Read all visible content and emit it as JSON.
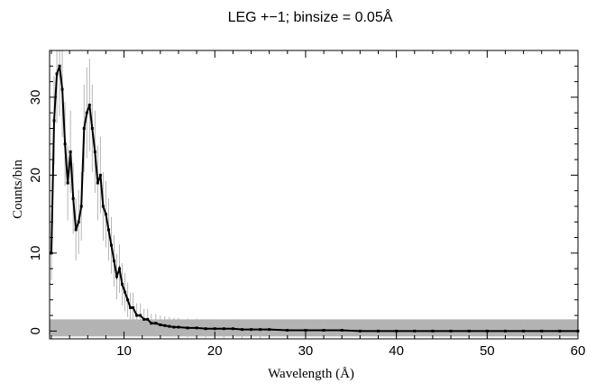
{
  "chart_data": {
    "type": "line",
    "title": "LEG +−1; binsize = 0.05Å",
    "xlabel": "Wavelength (Å)",
    "ylabel": "Counts/bin",
    "xlim": [
      1.8,
      60
    ],
    "ylim": [
      -1,
      36
    ],
    "grid": false,
    "x_ticks": [
      10,
      20,
      30,
      40,
      50,
      60
    ],
    "y_ticks": [
      0,
      10,
      20,
      30
    ],
    "x_tick_labels": [
      "10",
      "20",
      "30",
      "40",
      "50",
      "60"
    ],
    "y_tick_labels": [
      "0",
      "10",
      "20",
      "30"
    ],
    "background_band": [
      0,
      1.5
    ],
    "series": [
      {
        "x": [
          2.0,
          2.3,
          2.6,
          2.9,
          3.2,
          3.5,
          3.8,
          4.1,
          4.4,
          4.7,
          5.0,
          5.3,
          5.6,
          5.9,
          6.2,
          6.5,
          6.8,
          7.1,
          7.4,
          7.7,
          8.0,
          8.3,
          8.6,
          8.9,
          9.2,
          9.5,
          9.8,
          10.1,
          10.4,
          10.7,
          11.0,
          11.4,
          11.8,
          12.2,
          12.6,
          13.0,
          13.5,
          14.0,
          14.5,
          15.0,
          15.5,
          16.0,
          17.0,
          18.0,
          19.0,
          20.0,
          21.0,
          22.0,
          23.0,
          24.0,
          25.0,
          26.0,
          28.0,
          30.0,
          32.0,
          34.0,
          36.0,
          38.0,
          40.0,
          42.0,
          44.0,
          46.0,
          48.0,
          50.0,
          52.0,
          54.0,
          56.0,
          58.0,
          60.0
        ],
        "y": [
          10,
          27,
          33,
          34,
          31,
          24,
          19,
          23,
          17,
          13,
          14,
          16,
          26,
          28,
          29,
          26,
          23,
          19,
          20,
          16,
          15,
          13,
          11,
          9,
          7,
          8,
          6,
          5,
          4,
          3,
          3,
          2,
          2,
          1.5,
          1.5,
          1,
          1,
          0.8,
          0.7,
          0.6,
          0.5,
          0.5,
          0.4,
          0.4,
          0.3,
          0.3,
          0.3,
          0.3,
          0.2,
          0.2,
          0.2,
          0.2,
          0.1,
          0.1,
          0.1,
          0.1,
          0,
          0,
          0,
          0,
          0,
          0,
          0,
          0,
          0,
          0,
          0,
          0,
          0
        ],
        "color": "#000000",
        "error_color": "#b5b5b5"
      }
    ]
  }
}
